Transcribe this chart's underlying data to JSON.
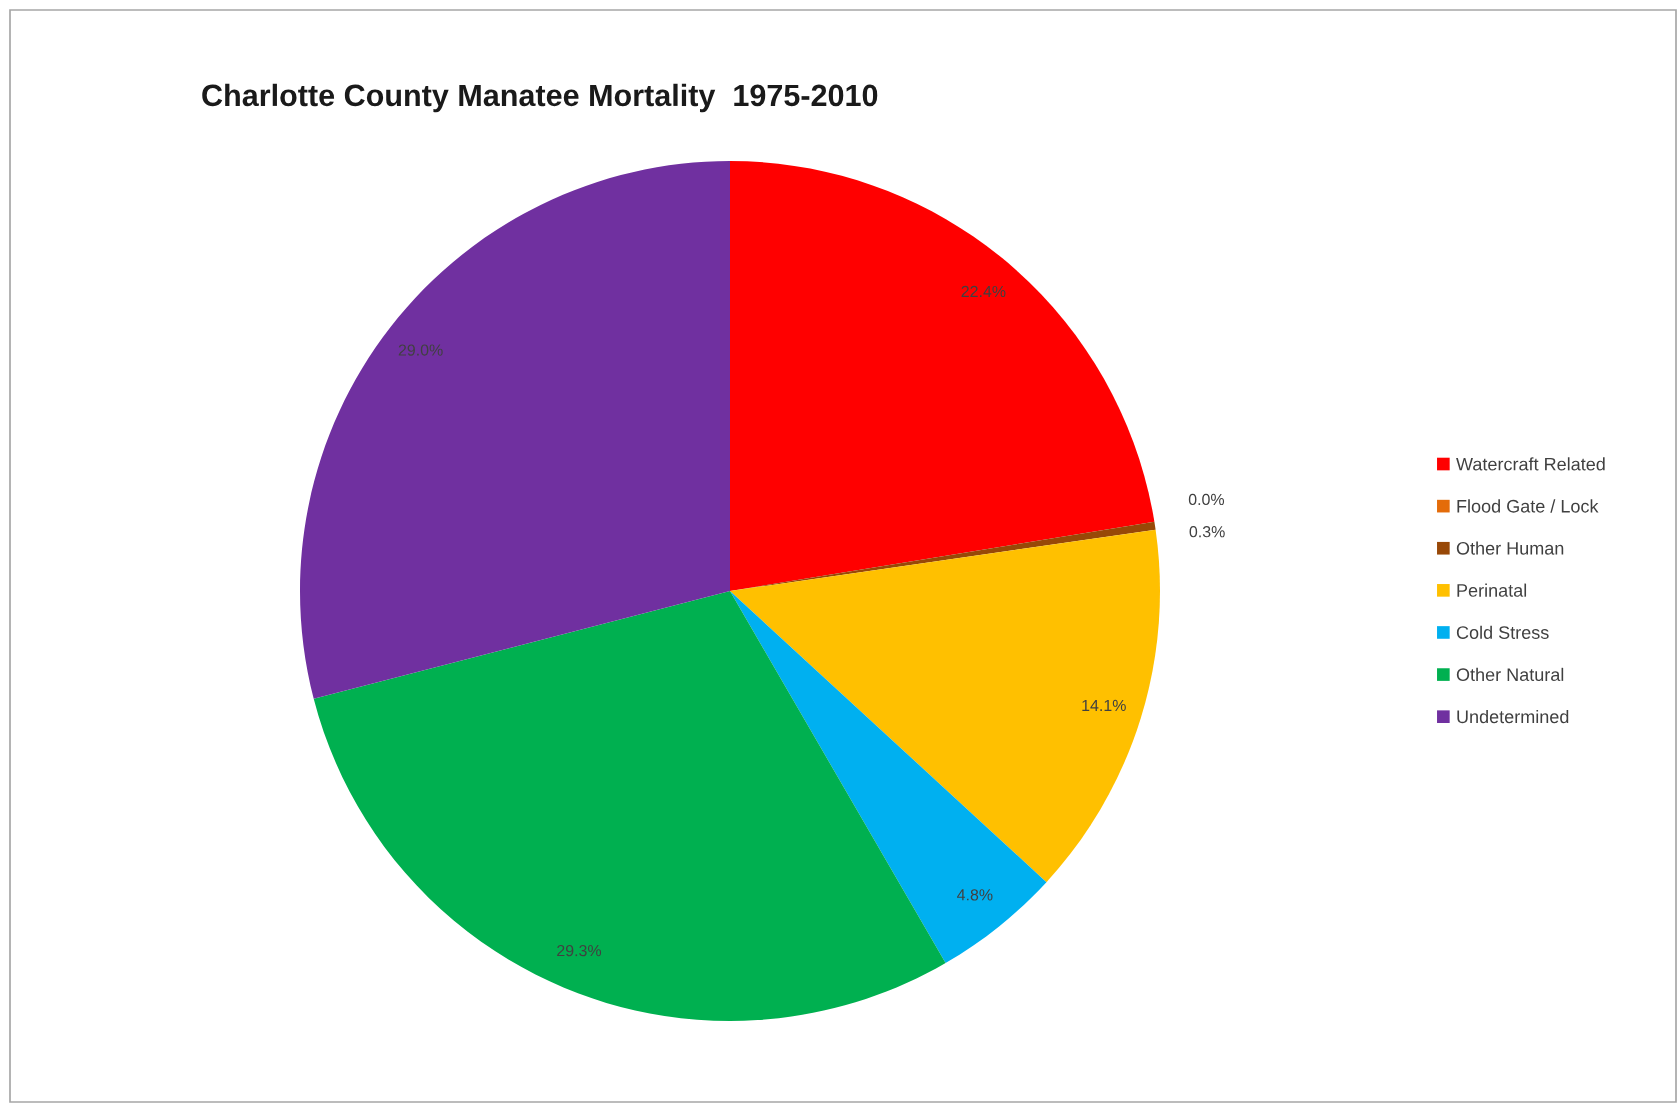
{
  "chart_data": {
    "type": "pie",
    "title": "Charlotte County Manatee Mortality  1975-2010",
    "categories": [
      "Watercraft Related",
      "Flood Gate / Lock",
      "Other Human",
      "Perinatal",
      "Cold Stress",
      "Other Natural",
      "Undetermined"
    ],
    "values": [
      22.4,
      0.0,
      0.3,
      14.1,
      4.8,
      29.3,
      29.0
    ],
    "value_labels": [
      "22.4%",
      "0.0%",
      "0.3%",
      "14.1%",
      "4.8%",
      "29.3%",
      "29.0%"
    ],
    "colors": [
      "#ff0000",
      "#e46c0a",
      "#984807",
      "#ffc000",
      "#00b0f0",
      "#00b050",
      "#7030a0"
    ],
    "legend": "right"
  }
}
